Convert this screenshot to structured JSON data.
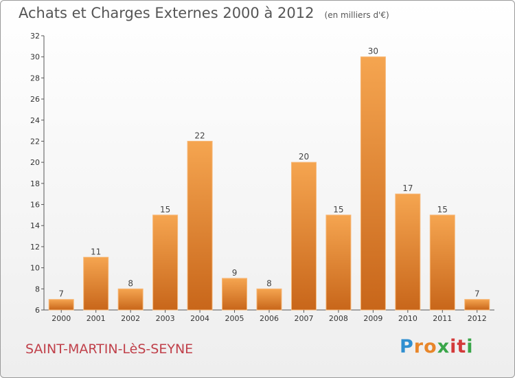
{
  "chart_data": {
    "type": "bar",
    "title": "Achats et Charges Externes 2000 à 2012",
    "subtitle": "(en milliers d'€)",
    "categories": [
      "2000",
      "2001",
      "2002",
      "2003",
      "2004",
      "2005",
      "2006",
      "2007",
      "2008",
      "2009",
      "2010",
      "2011",
      "2012"
    ],
    "values": [
      7,
      11,
      8,
      15,
      22,
      9,
      8,
      20,
      15,
      30,
      17,
      15,
      7
    ],
    "ylim": [
      6,
      32
    ],
    "yticks": [
      6,
      8,
      10,
      12,
      14,
      16,
      18,
      20,
      22,
      24,
      26,
      28,
      30,
      32
    ],
    "grid": false,
    "bar_color_top": "#f5a550",
    "bar_color_bottom": "#c8661a"
  },
  "footer": {
    "commune": "SAINT-MARTIN-LèS-SEYNE",
    "logo_letters": [
      "P",
      "r",
      "o",
      "x",
      "i",
      "t",
      "i"
    ],
    "logo_colors": [
      "#2f8fd0",
      "#e8862a",
      "#e8862a",
      "#3aa64a",
      "#d33a3a",
      "#d33a3a",
      "#3aa64a"
    ]
  }
}
